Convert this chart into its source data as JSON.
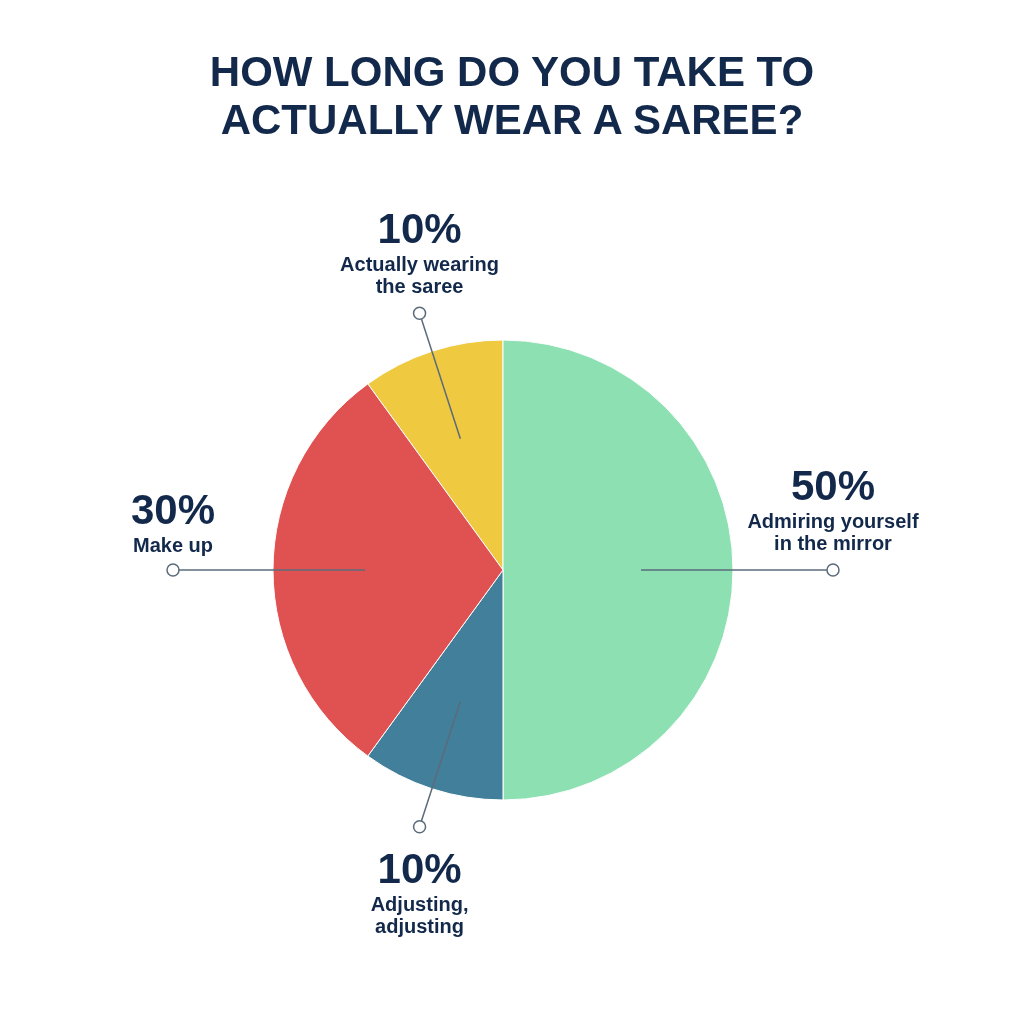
{
  "chart_data": {
    "type": "pie",
    "title": "HOW LONG DO YOU TAKE TO ACTUALLY WEAR A SAREE?",
    "categories": [
      "Actually wearing the saree",
      "Admiring yourself in the mirror",
      "Adjusting, adjusting",
      "Make up"
    ],
    "values": [
      10,
      50,
      10,
      30
    ],
    "value_labels": [
      "10%",
      "50%",
      "10%",
      "30%"
    ],
    "colors": [
      "#efc93f",
      "#8ce0b2",
      "#427f9a",
      "#e05252"
    ]
  }
}
